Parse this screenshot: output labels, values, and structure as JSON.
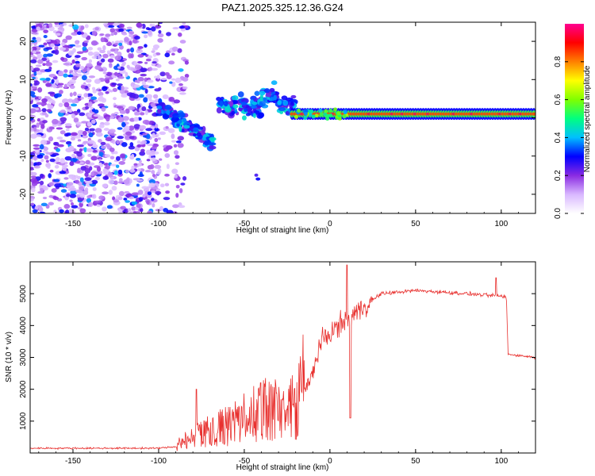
{
  "title": "PAZ1.2025.325.12.36.G24",
  "chart_data": [
    {
      "type": "heatmap",
      "name": "spectrogram",
      "xlabel": "Height of straight line (km)",
      "ylabel": "Frequency (Hz)",
      "xlim": [
        -175,
        120
      ],
      "ylim": [
        -25,
        25
      ],
      "xticks": [
        -150,
        -100,
        -50,
        0,
        50,
        100
      ],
      "yticks": [
        -20,
        -10,
        0,
        10,
        20
      ],
      "colorbar": {
        "label": "Normalized spectral amplitude",
        "range": [
          0,
          1
        ],
        "ticks": [
          0.0,
          0.2,
          0.4,
          0.6,
          0.8
        ],
        "colors": [
          "#ffffff",
          "#d9b8ff",
          "#8a2be2",
          "#0000ff",
          "#00bfff",
          "#00ff80",
          "#7fff00",
          "#ffff00",
          "#ff8000",
          "#ff0000",
          "#ff0090"
        ]
      },
      "features": [
        {
          "description": "noise",
          "x_range": [
            -175,
            -85
          ],
          "freq_range": [
            -25,
            25
          ],
          "amplitude": 0.15
        },
        {
          "description": "signal onset",
          "x_range": [
            -100,
            -65
          ],
          "freq_center": [
            3,
            -5
          ],
          "amplitude": 0.35
        },
        {
          "description": "signal scatter",
          "x_range": [
            -65,
            -20
          ],
          "freq_center": [
            2,
            5
          ],
          "amplitude": 0.4
        },
        {
          "description": "stable carrier",
          "x_range": [
            -20,
            120
          ],
          "freq_center": 1,
          "amplitude": 0.85
        }
      ]
    },
    {
      "type": "line",
      "name": "snr",
      "xlabel": "Height of straight line (km)",
      "ylabel": "SNR (10 * v/v)",
      "xlim": [
        -175,
        120
      ],
      "ylim": [
        0,
        6000
      ],
      "xticks": [
        -150,
        -100,
        -50,
        0,
        50,
        100
      ],
      "yticks": [
        1000,
        2000,
        3000,
        4000,
        5000
      ],
      "color": "#e8312f",
      "series": [
        {
          "name": "SNR",
          "profile": [
            {
              "x": -175,
              "y": 150
            },
            {
              "x": -100,
              "y": 150
            },
            {
              "x": -90,
              "y": 200
            },
            {
              "x": -80,
              "y": 400
            },
            {
              "x": -70,
              "y": 600
            },
            {
              "x": -60,
              "y": 700
            },
            {
              "x": -50,
              "y": 900
            },
            {
              "x": -40,
              "y": 1100
            },
            {
              "x": -30,
              "y": 1200
            },
            {
              "x": -20,
              "y": 1300
            },
            {
              "x": -12,
              "y": 2200
            },
            {
              "x": -5,
              "y": 3500
            },
            {
              "x": 5,
              "y": 4000
            },
            {
              "x": 10,
              "y": 4200
            },
            {
              "x": 20,
              "y": 4600
            },
            {
              "x": 30,
              "y": 5000
            },
            {
              "x": 50,
              "y": 5100
            },
            {
              "x": 80,
              "y": 5000
            },
            {
              "x": 103,
              "y": 4900
            },
            {
              "x": 104,
              "y": 3100
            },
            {
              "x": 120,
              "y": 3000
            }
          ]
        }
      ],
      "peaks": [
        {
          "x": 10,
          "y": 5900
        },
        {
          "x": 97,
          "y": 5500
        },
        {
          "x": -78,
          "y": 2000
        }
      ],
      "dip": {
        "x": 12,
        "y": 1100
      }
    }
  ]
}
